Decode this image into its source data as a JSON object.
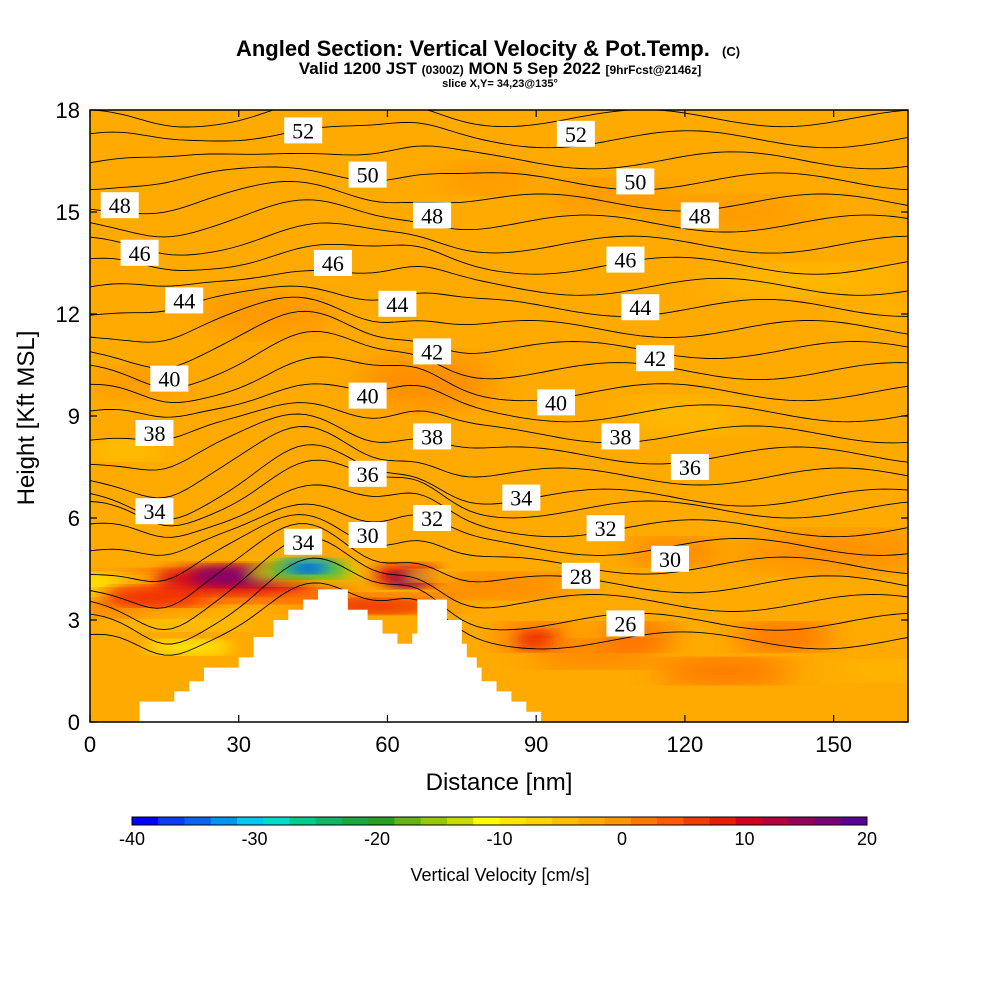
{
  "chart_data": {
    "type": "heatmap",
    "title": "Angled Section: Vertical Velocity & Pot.Temp.",
    "title_units": "(C)",
    "subtitle_main": "Valid 1200 JST",
    "subtitle_utc": "(0300Z)",
    "subtitle_date": "MON 5 Sep 2022",
    "subtitle_fcst": "[9hrFcst@2146z]",
    "slice_text": "slice X,Y= 34,23@135°",
    "xlabel": "Distance [nm]",
    "ylabel": "Height [Kft MSL]",
    "xlim": [
      0,
      165
    ],
    "ylim": [
      0,
      18
    ],
    "x_ticks": [
      "0",
      "30",
      "60",
      "90",
      "120",
      "150"
    ],
    "y_ticks": [
      "0",
      "3",
      "6",
      "9",
      "12",
      "15",
      "18"
    ],
    "colorbar": {
      "label": "Vertical Velocity [cm/s]",
      "range": [
        -40,
        20
      ],
      "tick_labels": [
        "-40",
        "-30",
        "-20",
        "-10",
        "0",
        "10",
        "20"
      ],
      "colors": [
        "#0000ff",
        "#0a3cf5",
        "#0a64ee",
        "#0096f0",
        "#00c8f0",
        "#00dccc",
        "#00cc8c",
        "#10b464",
        "#18a83c",
        "#28a020",
        "#64b414",
        "#96c80a",
        "#c8dc00",
        "#ffff00",
        "#ffe600",
        "#ffd200",
        "#ffbe00",
        "#ffaa00",
        "#ff9600",
        "#ff7800",
        "#ff5a00",
        "#f03c00",
        "#e61e00",
        "#d2001e",
        "#b4003c",
        "#96005a",
        "#780078",
        "#5a0096"
      ]
    },
    "theta_labels": [
      {
        "text": "52",
        "x": 43,
        "z": 17.4
      },
      {
        "text": "52",
        "x": 98,
        "z": 17.3
      },
      {
        "text": "50",
        "x": 56,
        "z": 16.1
      },
      {
        "text": "50",
        "x": 110,
        "z": 15.9
      },
      {
        "text": "48",
        "x": 6,
        "z": 15.2
      },
      {
        "text": "48",
        "x": 69,
        "z": 14.9
      },
      {
        "text": "48",
        "x": 123,
        "z": 14.9
      },
      {
        "text": "46",
        "x": 10,
        "z": 13.8
      },
      {
        "text": "46",
        "x": 49,
        "z": 13.5
      },
      {
        "text": "46",
        "x": 108,
        "z": 13.6
      },
      {
        "text": "44",
        "x": 19,
        "z": 12.4
      },
      {
        "text": "44",
        "x": 62,
        "z": 12.3
      },
      {
        "text": "44",
        "x": 111,
        "z": 12.2
      },
      {
        "text": "42",
        "x": 69,
        "z": 10.9
      },
      {
        "text": "42",
        "x": 114,
        "z": 10.7
      },
      {
        "text": "40",
        "x": 16,
        "z": 10.1
      },
      {
        "text": "40",
        "x": 56,
        "z": 9.6
      },
      {
        "text": "40",
        "x": 94,
        "z": 9.4
      },
      {
        "text": "38",
        "x": 13,
        "z": 8.5
      },
      {
        "text": "38",
        "x": 69,
        "z": 8.4
      },
      {
        "text": "38",
        "x": 107,
        "z": 8.4
      },
      {
        "text": "36",
        "x": 56,
        "z": 7.3
      },
      {
        "text": "36",
        "x": 121,
        "z": 7.5
      },
      {
        "text": "34",
        "x": 13,
        "z": 6.2
      },
      {
        "text": "34",
        "x": 87,
        "z": 6.6
      },
      {
        "text": "34",
        "x": 43,
        "z": 5.3
      },
      {
        "text": "32",
        "x": 69,
        "z": 6.0
      },
      {
        "text": "32",
        "x": 104,
        "z": 5.7
      },
      {
        "text": "30",
        "x": 56,
        "z": 5.5
      },
      {
        "text": "30",
        "x": 117,
        "z": 4.8
      },
      {
        "text": "28",
        "x": 99,
        "z": 4.3
      },
      {
        "text": "26",
        "x": 108,
        "z": 2.9
      }
    ],
    "terrain_profile_kft": [
      [
        0,
        0
      ],
      [
        10,
        0
      ],
      [
        10,
        0.6
      ],
      [
        17,
        0.6
      ],
      [
        17,
        0.9
      ],
      [
        20,
        0.9
      ],
      [
        20,
        1.2
      ],
      [
        23,
        1.2
      ],
      [
        23,
        1.6
      ],
      [
        30,
        1.6
      ],
      [
        30,
        1.9
      ],
      [
        33,
        1.9
      ],
      [
        33,
        2.5
      ],
      [
        37,
        2.5
      ],
      [
        37,
        3.0
      ],
      [
        40,
        3.0
      ],
      [
        40,
        3.3
      ],
      [
        43,
        3.3
      ],
      [
        43,
        3.6
      ],
      [
        46,
        3.6
      ],
      [
        46,
        3.9
      ],
      [
        52,
        3.9
      ],
      [
        52,
        3.3
      ],
      [
        56,
        3.3
      ],
      [
        56,
        3.0
      ],
      [
        59,
        3.0
      ],
      [
        59,
        2.6
      ],
      [
        62,
        2.6
      ],
      [
        62,
        2.3
      ],
      [
        65,
        2.3
      ],
      [
        65,
        2.6
      ],
      [
        66,
        2.6
      ],
      [
        66,
        3.6
      ],
      [
        72,
        3.6
      ],
      [
        72,
        3.0
      ],
      [
        75,
        3.0
      ],
      [
        75,
        2.3
      ],
      [
        76,
        2.3
      ],
      [
        76,
        1.9
      ],
      [
        78,
        1.9
      ],
      [
        78,
        1.6
      ],
      [
        79,
        1.6
      ],
      [
        79,
        1.2
      ],
      [
        82,
        1.2
      ],
      [
        82,
        0.9
      ],
      [
        85,
        0.9
      ],
      [
        85,
        0.6
      ],
      [
        88,
        0.6
      ],
      [
        88,
        0.3
      ],
      [
        91,
        0.3
      ],
      [
        91,
        0
      ]
    ]
  }
}
